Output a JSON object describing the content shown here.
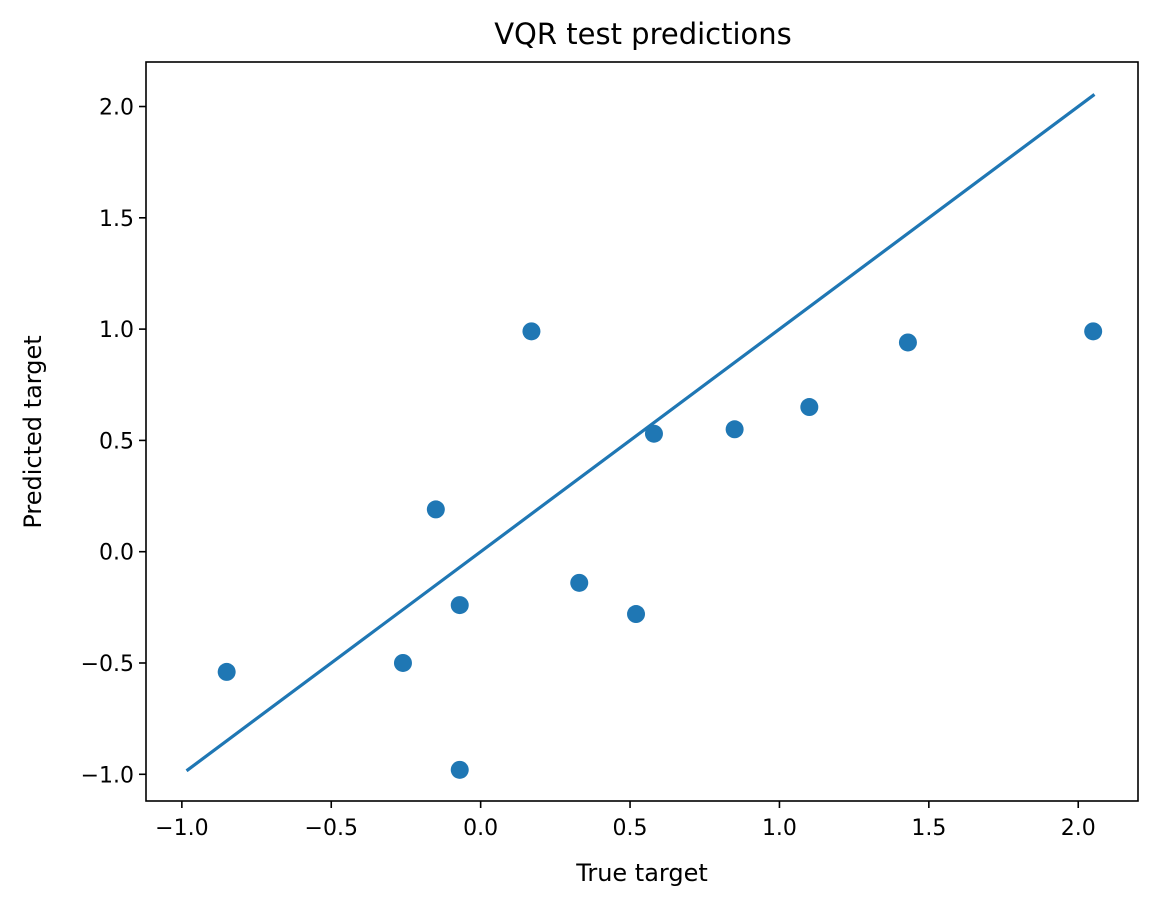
{
  "chart_data": {
    "type": "scatter",
    "title": "VQR test predictions",
    "xlabel": "True target",
    "ylabel": "Predicted target",
    "xlim": [
      -1.12,
      2.2
    ],
    "ylim": [
      -1.12,
      2.2
    ],
    "xticks": [
      -1.0,
      -0.5,
      0.0,
      0.5,
      1.0,
      1.5,
      2.0
    ],
    "xtick_labels": [
      "−1.0",
      "−0.5",
      "0.0",
      "0.5",
      "1.0",
      "1.5",
      "2.0"
    ],
    "yticks": [
      -1.0,
      -0.5,
      0.0,
      0.5,
      1.0,
      1.5,
      2.0
    ],
    "ytick_labels": [
      "−1.0",
      "−0.5",
      "0.0",
      "0.5",
      "1.0",
      "1.5",
      "2.0"
    ],
    "grid": false,
    "color": "#1f77b4",
    "points": [
      {
        "x": -0.85,
        "y": -0.54
      },
      {
        "x": -0.26,
        "y": -0.5
      },
      {
        "x": -0.15,
        "y": 0.19
      },
      {
        "x": -0.07,
        "y": -0.24
      },
      {
        "x": -0.07,
        "y": -0.98
      },
      {
        "x": 0.17,
        "y": 0.99
      },
      {
        "x": 0.33,
        "y": -0.14
      },
      {
        "x": 0.52,
        "y": -0.28
      },
      {
        "x": 0.58,
        "y": 0.53
      },
      {
        "x": 0.85,
        "y": 0.55
      },
      {
        "x": 1.1,
        "y": 0.65
      },
      {
        "x": 1.43,
        "y": 0.94
      },
      {
        "x": 2.05,
        "y": 0.99
      }
    ],
    "reference_line": {
      "x": [
        -0.98,
        2.05
      ],
      "y": [
        -0.98,
        2.05
      ]
    }
  }
}
